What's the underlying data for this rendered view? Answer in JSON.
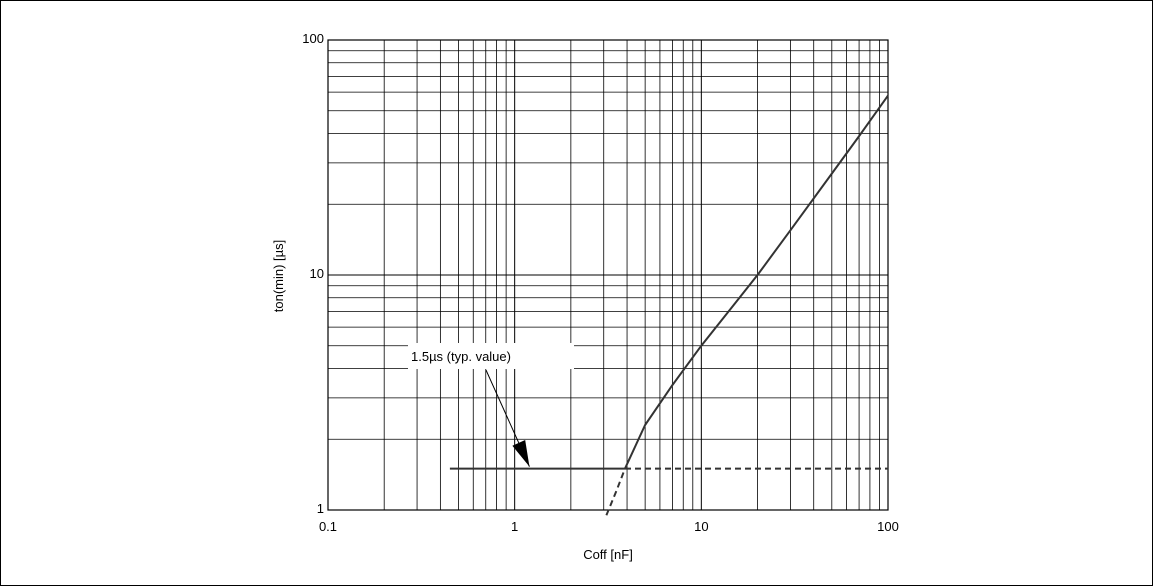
{
  "chart_data": {
    "type": "line",
    "x_scale": "log",
    "y_scale": "log",
    "xlim": [
      0.1,
      100
    ],
    "ylim": [
      1,
      100
    ],
    "grid": true,
    "xlabel": "Coff [nF]",
    "ylabel": "ton(min) [µs]",
    "x_ticks": [
      {
        "value": 0.1,
        "label": "0.1"
      },
      {
        "value": 1,
        "label": "1"
      },
      {
        "value": 10,
        "label": "10"
      },
      {
        "value": 100,
        "label": "100"
      }
    ],
    "y_ticks": [
      {
        "value": 1,
        "label": "1"
      },
      {
        "value": 10,
        "label": "10"
      },
      {
        "value": 100,
        "label": "100"
      }
    ],
    "series": [
      {
        "style": "solid",
        "points": [
          [
            0.45,
            1.5
          ],
          [
            3.9,
            1.5
          ]
        ]
      },
      {
        "style": "dashed",
        "points": [
          [
            3.9,
            1.5
          ],
          [
            100,
            1.5
          ]
        ]
      },
      {
        "style": "solid",
        "points": [
          [
            3.9,
            1.5
          ],
          [
            5,
            2.3
          ],
          [
            7,
            3.4
          ],
          [
            10,
            5
          ],
          [
            15,
            7.5
          ],
          [
            20,
            10
          ],
          [
            30,
            15.5
          ],
          [
            50,
            27
          ],
          [
            70,
            39
          ],
          [
            100,
            58
          ]
        ]
      },
      {
        "style": "dashed",
        "points": [
          [
            3.1,
            0.95
          ],
          [
            3.5,
            1.2
          ],
          [
            3.9,
            1.5
          ]
        ]
      }
    ],
    "annotations": [
      {
        "text": "1.5µs (typ. value)",
        "arrow_to": [
          1.2,
          1.5
        ]
      }
    ]
  }
}
